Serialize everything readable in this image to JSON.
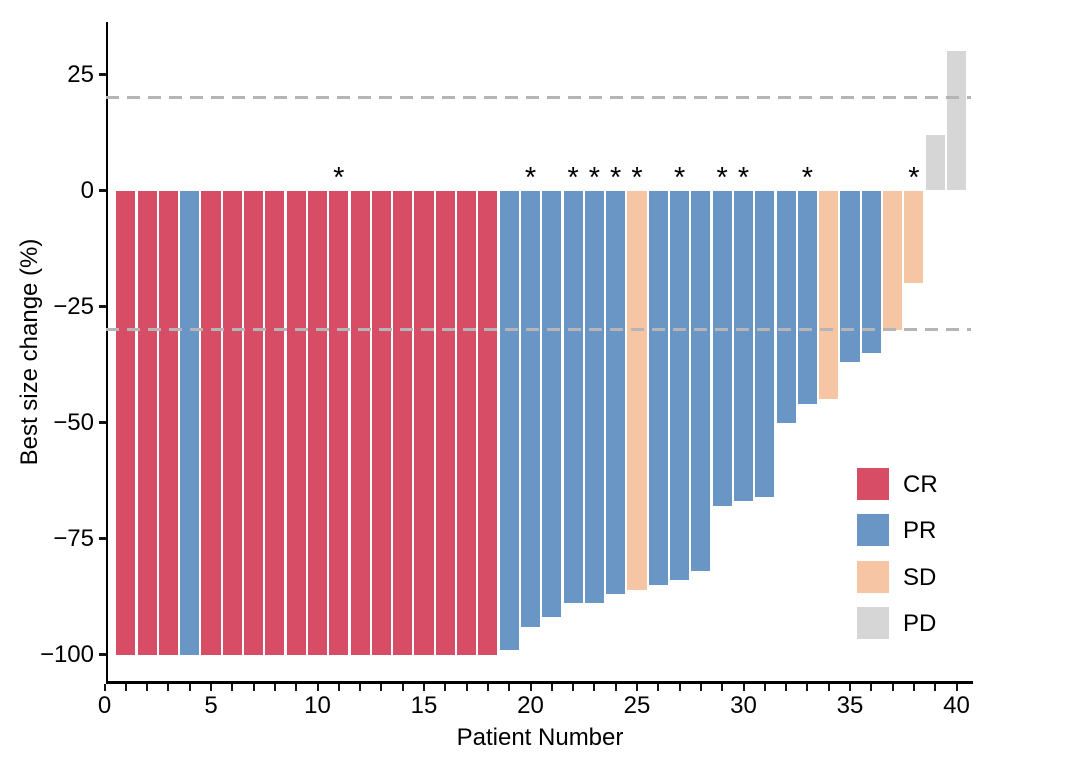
{
  "figure": {
    "background": "#ffffff",
    "xlabel": "Patient Number",
    "ylabel": "Best size change (%)",
    "asterisk_symbol": "*"
  },
  "legend": {
    "items": [
      {
        "label": "CR",
        "color": "#d74d65"
      },
      {
        "label": "PR",
        "color": "#6996c5"
      },
      {
        "label": "SD",
        "color": "#f6c6a4"
      },
      {
        "label": "PD",
        "color": "#d6d6d6"
      }
    ]
  },
  "chart_data": {
    "type": "bar",
    "title": "",
    "xlabel": "Patient Number",
    "ylabel": "Best size change (%)",
    "x_tick_labels": [
      0,
      5,
      10,
      15,
      20,
      25,
      30,
      35,
      40
    ],
    "x_minor_tick_step": 1,
    "y_tick_labels": [
      25,
      0,
      -25,
      -50,
      -75,
      -100
    ],
    "xlim": [
      0,
      40.6
    ],
    "ylim": [
      -106,
      38
    ],
    "grid": false,
    "legend_position": "inside-lower-right",
    "reference_lines": {
      "values": [
        20,
        -30
      ],
      "style": "dashed",
      "color": "#b5b5b8"
    },
    "response_colors": {
      "CR": "#d74d65",
      "PR": "#6996c5",
      "SD": "#f6c6a4",
      "PD": "#d6d6d6"
    },
    "patients": [
      {
        "patient": 1,
        "change": -100,
        "response": "CR",
        "asterisk": false
      },
      {
        "patient": 2,
        "change": -100,
        "response": "CR",
        "asterisk": false
      },
      {
        "patient": 3,
        "change": -100,
        "response": "CR",
        "asterisk": false
      },
      {
        "patient": 4,
        "change": -100,
        "response": "PR",
        "asterisk": false
      },
      {
        "patient": 5,
        "change": -100,
        "response": "CR",
        "asterisk": false
      },
      {
        "patient": 6,
        "change": -100,
        "response": "CR",
        "asterisk": false
      },
      {
        "patient": 7,
        "change": -100,
        "response": "CR",
        "asterisk": false
      },
      {
        "patient": 8,
        "change": -100,
        "response": "CR",
        "asterisk": false
      },
      {
        "patient": 9,
        "change": -100,
        "response": "CR",
        "asterisk": false
      },
      {
        "patient": 10,
        "change": -100,
        "response": "CR",
        "asterisk": false
      },
      {
        "patient": 11,
        "change": -100,
        "response": "CR",
        "asterisk": true
      },
      {
        "patient": 12,
        "change": -100,
        "response": "CR",
        "asterisk": false
      },
      {
        "patient": 13,
        "change": -100,
        "response": "CR",
        "asterisk": false
      },
      {
        "patient": 14,
        "change": -100,
        "response": "CR",
        "asterisk": false
      },
      {
        "patient": 15,
        "change": -100,
        "response": "CR",
        "asterisk": false
      },
      {
        "patient": 16,
        "change": -100,
        "response": "CR",
        "asterisk": false
      },
      {
        "patient": 17,
        "change": -100,
        "response": "CR",
        "asterisk": false
      },
      {
        "patient": 18,
        "change": -100,
        "response": "CR",
        "asterisk": false
      },
      {
        "patient": 19,
        "change": -99,
        "response": "PR",
        "asterisk": false
      },
      {
        "patient": 20,
        "change": -94,
        "response": "PR",
        "asterisk": true
      },
      {
        "patient": 21,
        "change": -92,
        "response": "PR",
        "asterisk": false
      },
      {
        "patient": 22,
        "change": -89,
        "response": "PR",
        "asterisk": true
      },
      {
        "patient": 23,
        "change": -89,
        "response": "PR",
        "asterisk": true
      },
      {
        "patient": 24,
        "change": -87,
        "response": "PR",
        "asterisk": true
      },
      {
        "patient": 25,
        "change": -86,
        "response": "SD",
        "asterisk": true
      },
      {
        "patient": 26,
        "change": -85,
        "response": "PR",
        "asterisk": false
      },
      {
        "patient": 27,
        "change": -84,
        "response": "PR",
        "asterisk": true
      },
      {
        "patient": 28,
        "change": -82,
        "response": "PR",
        "asterisk": false
      },
      {
        "patient": 29,
        "change": -68,
        "response": "PR",
        "asterisk": true
      },
      {
        "patient": 30,
        "change": -67,
        "response": "PR",
        "asterisk": true
      },
      {
        "patient": 31,
        "change": -66,
        "response": "PR",
        "asterisk": false
      },
      {
        "patient": 32,
        "change": -50,
        "response": "PR",
        "asterisk": false
      },
      {
        "patient": 33,
        "change": -46,
        "response": "PR",
        "asterisk": true
      },
      {
        "patient": 34,
        "change": -45,
        "response": "SD",
        "asterisk": false
      },
      {
        "patient": 35,
        "change": -37,
        "response": "PR",
        "asterisk": false
      },
      {
        "patient": 36,
        "change": -35,
        "response": "PR",
        "asterisk": false
      },
      {
        "patient": 37,
        "change": -30,
        "response": "SD",
        "asterisk": false
      },
      {
        "patient": 38,
        "change": -20,
        "response": "SD",
        "asterisk": true
      },
      {
        "patient": 39,
        "change": 12,
        "response": "PD",
        "asterisk": false
      },
      {
        "patient": 40,
        "change": 30,
        "response": "PD",
        "asterisk": false
      }
    ]
  }
}
